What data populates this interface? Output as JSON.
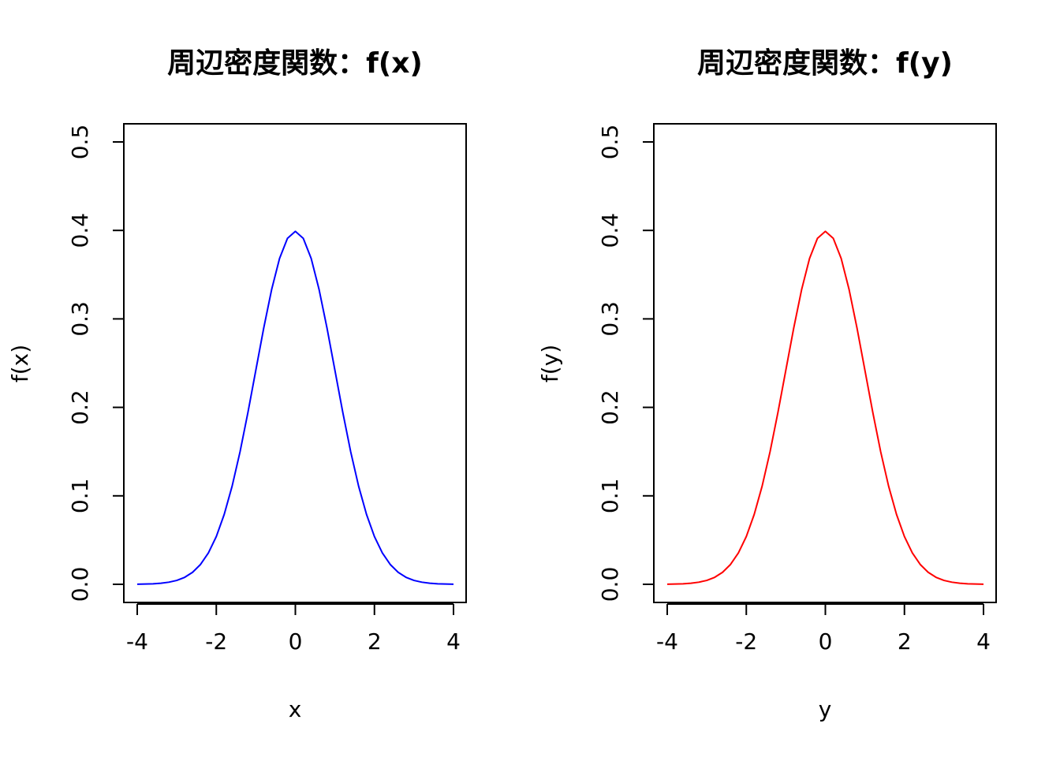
{
  "chart_data": [
    {
      "type": "line",
      "title": "周辺密度関数：f(x)",
      "xlabel": "x",
      "ylabel": "f(x)",
      "xlim": [
        -4,
        4
      ],
      "ylim": [
        0,
        0.5
      ],
      "xticks": [
        "-4",
        "-2",
        "0",
        "2",
        "4"
      ],
      "yticks": [
        "0.0",
        "0.1",
        "0.2",
        "0.3",
        "0.4",
        "0.5"
      ],
      "grid": false,
      "series": [
        {
          "color": "#0000ff",
          "x": [
            -4.0,
            -3.8,
            -3.6,
            -3.4,
            -3.2,
            -3.0,
            -2.8,
            -2.6,
            -2.4,
            -2.2,
            -2.0,
            -1.8,
            -1.6,
            -1.4,
            -1.2,
            -1.0,
            -0.8,
            -0.6,
            -0.4,
            -0.2,
            0.0,
            0.2,
            0.4,
            0.6,
            0.8,
            1.0,
            1.2,
            1.4,
            1.6,
            1.8,
            2.0,
            2.2,
            2.4,
            2.6,
            2.8,
            3.0,
            3.2,
            3.4,
            3.6,
            3.8,
            4.0
          ],
          "y": [
            0.0001,
            0.0003,
            0.0006,
            0.0012,
            0.0024,
            0.0044,
            0.0079,
            0.0136,
            0.0224,
            0.0355,
            0.054,
            0.079,
            0.1109,
            0.1497,
            0.1942,
            0.242,
            0.2897,
            0.3332,
            0.3683,
            0.391,
            0.3989,
            0.391,
            0.3683,
            0.3332,
            0.2897,
            0.242,
            0.1942,
            0.1497,
            0.1109,
            0.079,
            0.054,
            0.0355,
            0.0224,
            0.0136,
            0.0079,
            0.0044,
            0.0024,
            0.0012,
            0.0006,
            0.0003,
            0.0001
          ]
        }
      ]
    },
    {
      "type": "line",
      "title": "周辺密度関数：f(y)",
      "xlabel": "y",
      "ylabel": "f(y)",
      "xlim": [
        -4,
        4
      ],
      "ylim": [
        0,
        0.5
      ],
      "xticks": [
        "-4",
        "-2",
        "0",
        "2",
        "4"
      ],
      "yticks": [
        "0.0",
        "0.1",
        "0.2",
        "0.3",
        "0.4",
        "0.5"
      ],
      "grid": false,
      "series": [
        {
          "color": "#ff0000",
          "x": [
            -4.0,
            -3.8,
            -3.6,
            -3.4,
            -3.2,
            -3.0,
            -2.8,
            -2.6,
            -2.4,
            -2.2,
            -2.0,
            -1.8,
            -1.6,
            -1.4,
            -1.2,
            -1.0,
            -0.8,
            -0.6,
            -0.4,
            -0.2,
            0.0,
            0.2,
            0.4,
            0.6,
            0.8,
            1.0,
            1.2,
            1.4,
            1.6,
            1.8,
            2.0,
            2.2,
            2.4,
            2.6,
            2.8,
            3.0,
            3.2,
            3.4,
            3.6,
            3.8,
            4.0
          ],
          "y": [
            0.0001,
            0.0003,
            0.0006,
            0.0012,
            0.0024,
            0.0044,
            0.0079,
            0.0136,
            0.0224,
            0.0355,
            0.054,
            0.079,
            0.1109,
            0.1497,
            0.1942,
            0.242,
            0.2897,
            0.3332,
            0.3683,
            0.391,
            0.3989,
            0.391,
            0.3683,
            0.3332,
            0.2897,
            0.242,
            0.1942,
            0.1497,
            0.1109,
            0.079,
            0.054,
            0.0355,
            0.0224,
            0.0136,
            0.0079,
            0.0044,
            0.0024,
            0.0012,
            0.0006,
            0.0003,
            0.0001
          ]
        }
      ]
    }
  ]
}
